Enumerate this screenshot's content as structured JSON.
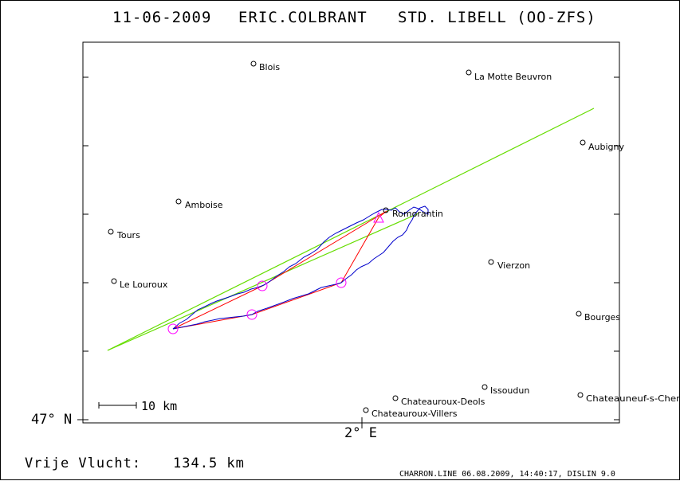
{
  "header": {
    "date": "11-06-2009",
    "pilot": "ERIC.COLBRANT",
    "glider": "STD. LIBELL (OO-ZFS)"
  },
  "axes": {
    "lat_label": "47° N",
    "lon_label": "2° E"
  },
  "scale_bar": {
    "label": "10 km"
  },
  "footer": {
    "flight_label": "Vrije Vlucht:",
    "distance": "134.5 km",
    "credit": "CHARRON.LINE 06.08.2009, 14:40:17, DISLIN 9.0"
  },
  "towns": [
    {
      "id": "blois",
      "name": "Blois"
    },
    {
      "id": "la-motte-beuvron",
      "name": "La Motte Beuvron"
    },
    {
      "id": "aubigny",
      "name": "Aubigny"
    },
    {
      "id": "amboise",
      "name": "Amboise"
    },
    {
      "id": "romorantin",
      "name": "Romorantin"
    },
    {
      "id": "tours",
      "name": "Tours"
    },
    {
      "id": "vierzon",
      "name": "Vierzon"
    },
    {
      "id": "le-louroux",
      "name": "Le Louroux"
    },
    {
      "id": "bourges",
      "name": "Bourges"
    },
    {
      "id": "issoudun",
      "name": "Issoudun"
    },
    {
      "id": "chateauroux-deols",
      "name": "Chateauroux-Deols"
    },
    {
      "id": "chateauneuf",
      "name": "Chateauneuf-s-Cher"
    },
    {
      "id": "chateauroux-villers",
      "name": "Chateauroux-Villers"
    }
  ],
  "colors": {
    "track": "#0000cc",
    "task": "#ff0000",
    "turnpoint": "#ff00ff",
    "sector": "#66dd00",
    "frame": "#000000"
  }
}
